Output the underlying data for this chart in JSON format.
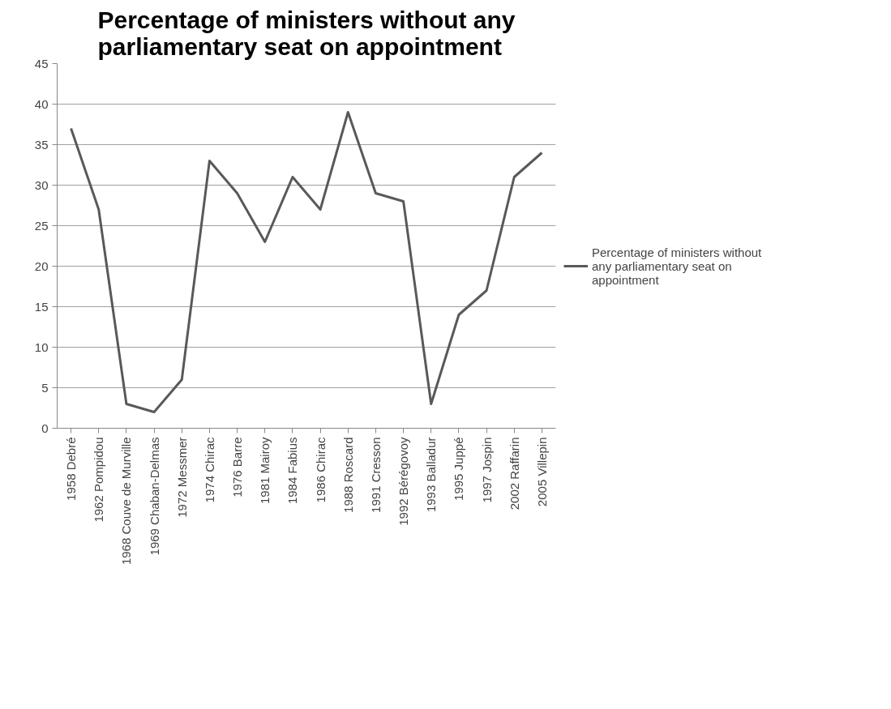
{
  "chart_data": {
    "type": "line",
    "title": "Percentage of ministers without any parliamentary seat on appointment",
    "categories": [
      "1958 Debré",
      "1962 Pompidou",
      "1968 Couve de Murville",
      "1969 Chaban-Delmas",
      "1972 Messmer",
      "1974 Chirac",
      "1976 Barre",
      "1981 Mairoy",
      "1984 Fabius",
      "1986 Chirac",
      "1988 Roscard",
      "1991 Cresson",
      "1992 Bérégovoy",
      "1993 Balladur",
      "1995 Juppé",
      "1997 Jospin",
      "2002 Raffarin",
      "2005 Villepin"
    ],
    "series": [
      {
        "name": "Percentage of ministers without any parliamentary seat on appointment",
        "color": "#595959",
        "values": [
          37,
          27,
          3,
          2,
          6,
          33,
          29,
          23,
          31,
          27,
          39,
          29,
          28,
          3,
          14,
          17,
          31,
          34
        ]
      }
    ],
    "ylim": [
      0,
      45
    ],
    "yticks": [
      0,
      5,
      10,
      15,
      20,
      25,
      30,
      35,
      40,
      45
    ],
    "grid": "y",
    "legend": "right",
    "marker": "none",
    "line_style": "solid"
  }
}
